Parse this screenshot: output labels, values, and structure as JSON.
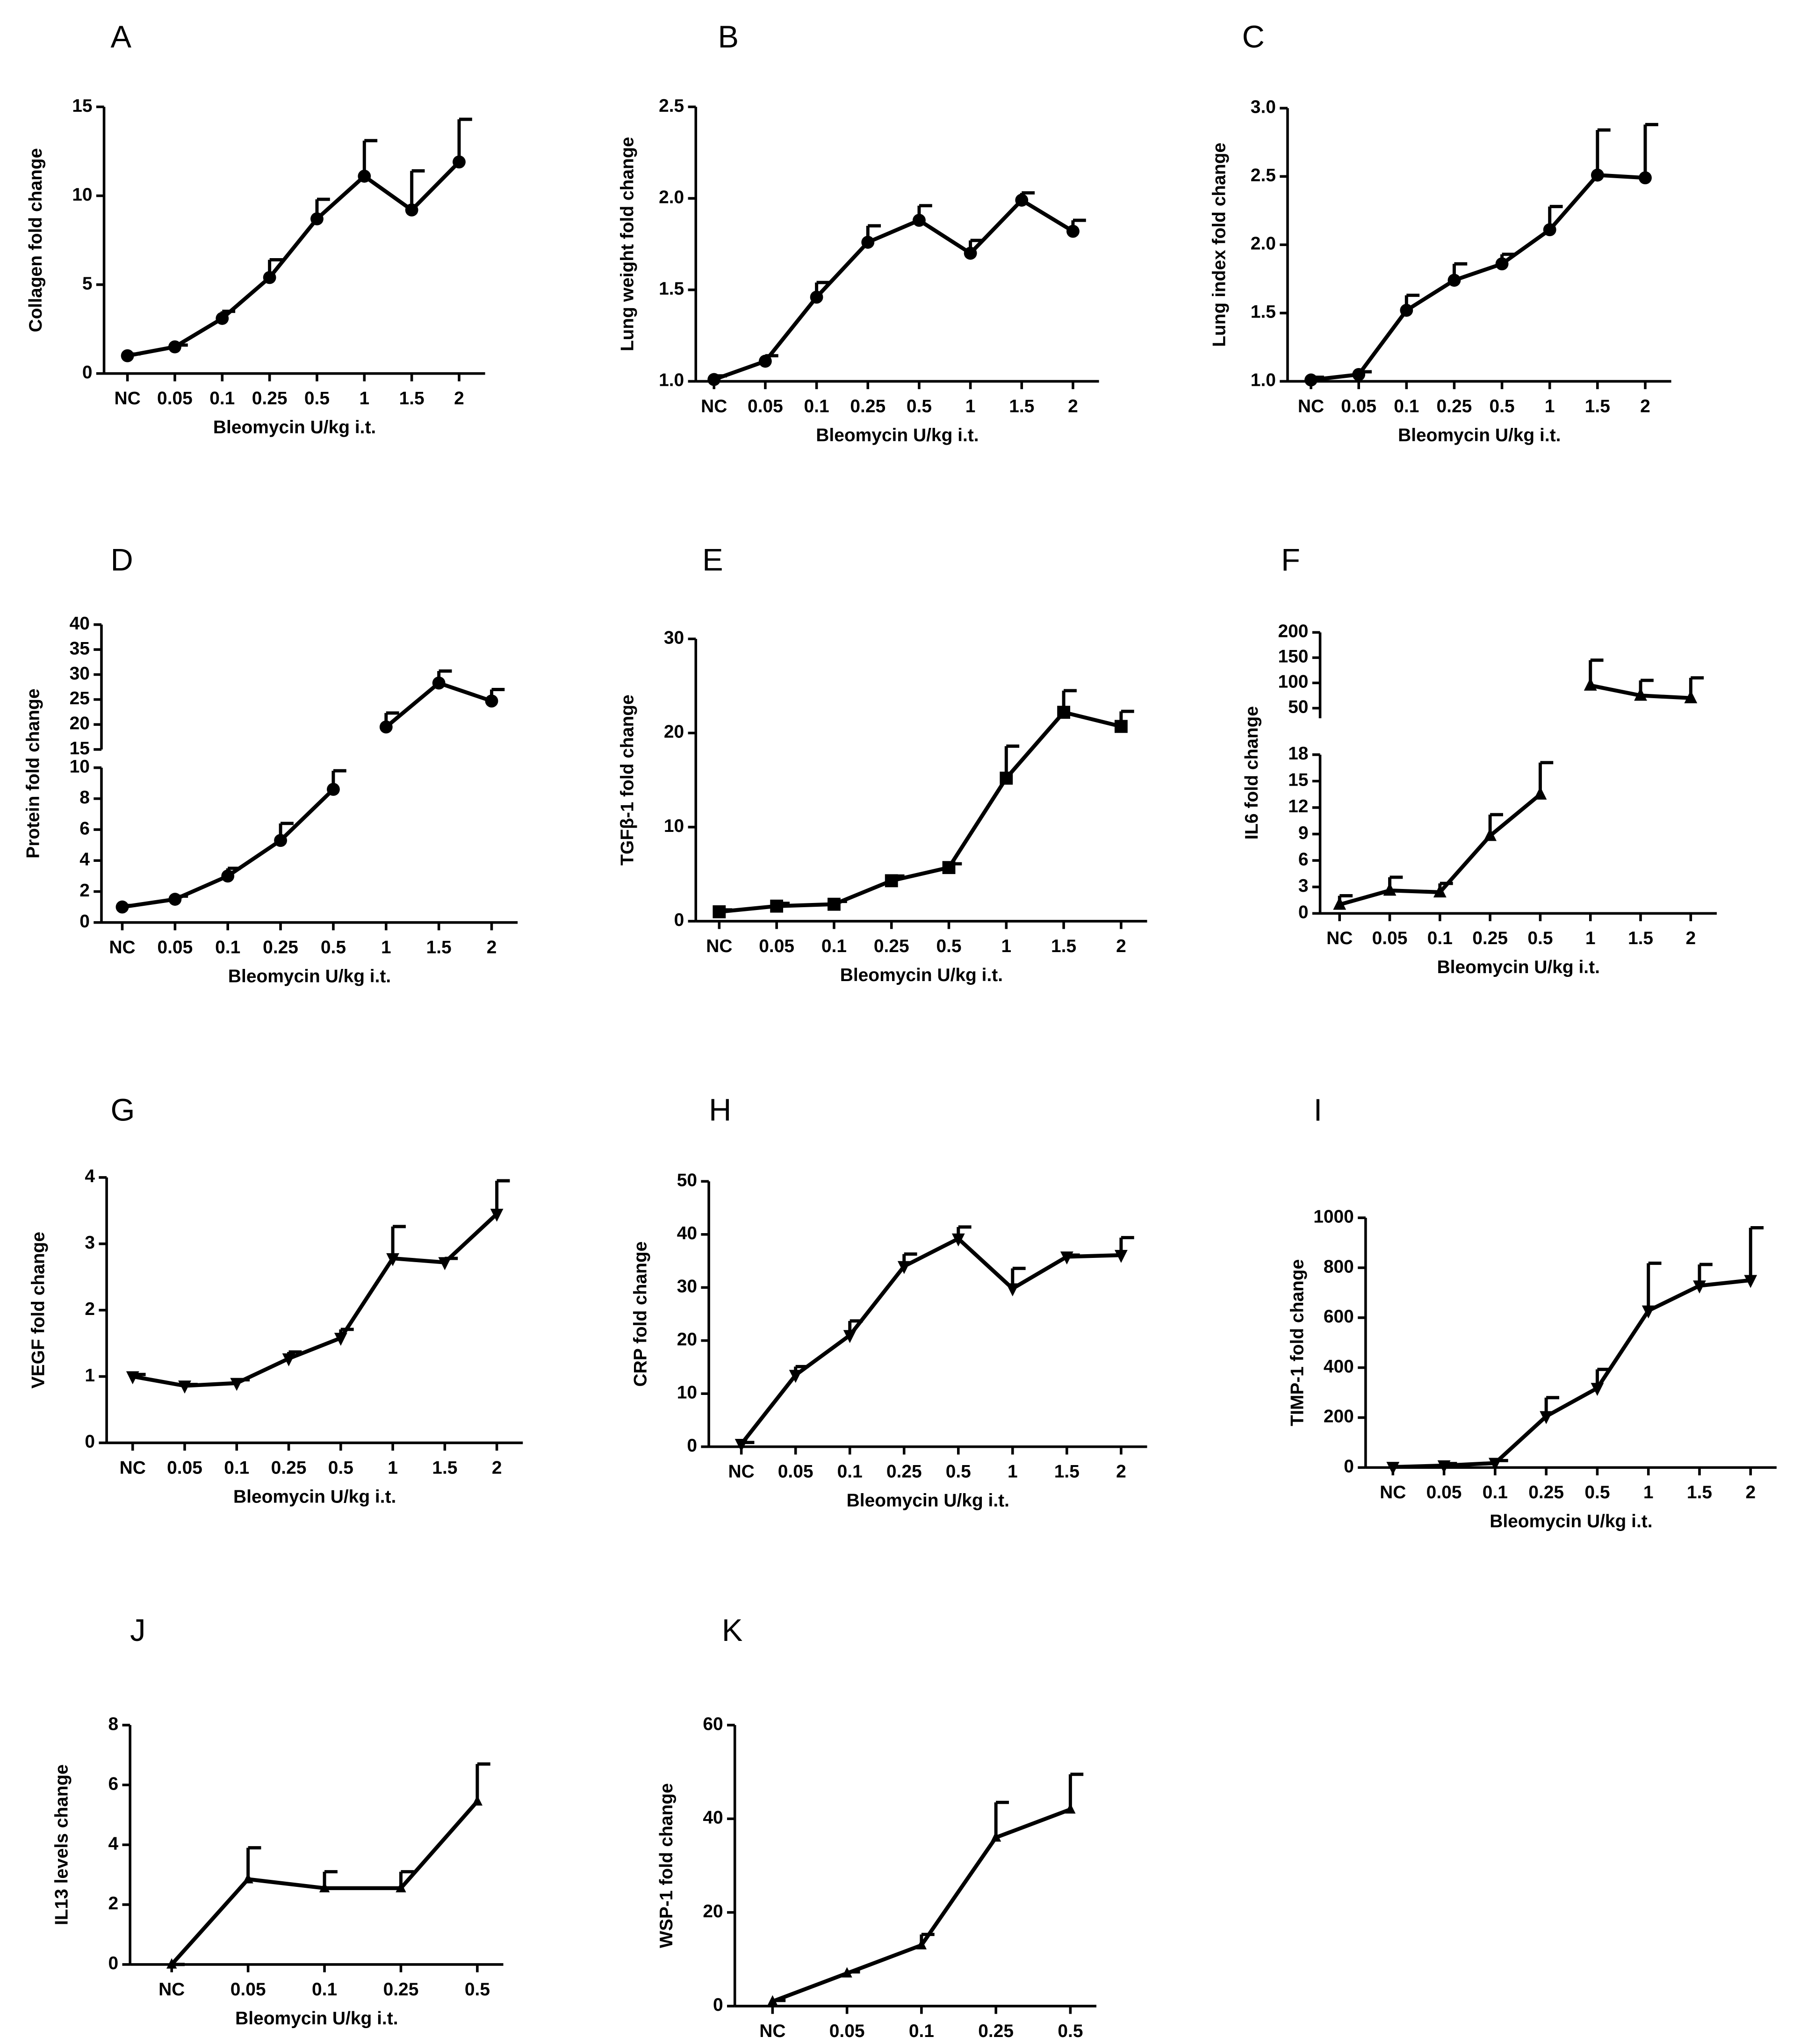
{
  "chart_data": [
    {
      "type": "line",
      "panel": "A",
      "ylabel": "Collagen fold change",
      "xlabel": "Bleomycin U/kg i.t.",
      "marker": "circle",
      "categories": [
        "NC",
        "0.05",
        "0.1",
        "0.25",
        "0.5",
        "1",
        "1.5",
        "2"
      ],
      "values": [
        1,
        1.5,
        3.1,
        5.4,
        8.7,
        11.1,
        9.2,
        11.9
      ],
      "errors": [
        0.1,
        0.1,
        0.4,
        1.0,
        1.1,
        2.0,
        2.2,
        2.4
      ],
      "ylim": [
        0,
        15
      ],
      "yticks": [
        0,
        5,
        10,
        15
      ]
    },
    {
      "type": "line",
      "panel": "B",
      "ylabel": "Lung weight fold change",
      "xlabel": "Bleomycin U/kg i.t.",
      "marker": "circle",
      "categories": [
        "NC",
        "0.05",
        "0.1",
        "0.25",
        "0.5",
        "1",
        "1.5",
        "2"
      ],
      "values": [
        1.01,
        1.11,
        1.46,
        1.76,
        1.88,
        1.7,
        1.99,
        1.82
      ],
      "errors": [
        0.02,
        0.03,
        0.08,
        0.09,
        0.08,
        0.07,
        0.04,
        0.06
      ],
      "ylim": [
        1,
        2.5
      ],
      "yticks": [
        {
          "value": 1,
          "label": "1.0"
        },
        1.5,
        {
          "value": 2,
          "label": "2.0"
        },
        2.5
      ]
    },
    {
      "type": "line",
      "panel": "C",
      "ylabel": "Lung index fold change",
      "xlabel": "Bleomycin U/kg i.t.",
      "marker": "circle",
      "categories": [
        "NC",
        "0.05",
        "0.1",
        "0.25",
        "0.5",
        "1",
        "1.5",
        "2"
      ],
      "values": [
        1.01,
        1.05,
        1.52,
        1.74,
        1.86,
        2.11,
        2.51,
        2.49
      ],
      "errors": [
        0.02,
        0.02,
        0.11,
        0.12,
        0.07,
        0.17,
        0.33,
        0.39
      ],
      "ylim": [
        1,
        3
      ],
      "yticks": [
        {
          "value": 1,
          "label": "1.0"
        },
        1.5,
        {
          "value": 2,
          "label": "2.0"
        },
        2.5,
        {
          "value": 3,
          "label": "3.0"
        }
      ]
    },
    {
      "type": "line",
      "panel": "D",
      "ylabel": "Protein fold change",
      "xlabel": "Bleomycin U/kg i.t.",
      "marker": "circle",
      "categories": [
        "NC",
        "0.05",
        "0.1",
        "0.25",
        "0.5",
        "1",
        "1.5",
        "2"
      ],
      "values": [
        1,
        1.5,
        3.0,
        5.3,
        8.6,
        19.5,
        28.3,
        24.7
      ],
      "errors": [
        0.1,
        0.2,
        0.5,
        1.1,
        1.2,
        2.8,
        2.4,
        2.3
      ],
      "y_segments": [
        {
          "ylim": [
            0,
            10
          ],
          "yticks": [
            0,
            2,
            4,
            6,
            8,
            10
          ]
        },
        {
          "ylim": [
            15,
            40
          ],
          "yticks": [
            15,
            20,
            25,
            30,
            35,
            40
          ]
        }
      ]
    },
    {
      "type": "line",
      "panel": "E",
      "ylabel": "TGFβ-1 fold change",
      "xlabel": "Bleomycin U/kg i.t.",
      "marker": "square",
      "categories": [
        "NC",
        "0.05",
        "0.1",
        "0.25",
        "0.5",
        "1",
        "1.5",
        "2"
      ],
      "values": [
        1,
        1.6,
        1.8,
        4.3,
        5.7,
        15.2,
        22.2,
        20.7
      ],
      "errors": [
        0.2,
        0.3,
        0.3,
        0.5,
        0.4,
        3.4,
        2.3,
        1.6
      ],
      "ylim": [
        0,
        30
      ],
      "yticks": [
        0,
        10,
        20,
        30
      ]
    },
    {
      "type": "line",
      "panel": "F",
      "ylabel": "IL6 fold change",
      "xlabel": "Bleomycin U/kg i.t.",
      "marker": "triangle-up",
      "categories": [
        "NC",
        "0.05",
        "0.1",
        "0.25",
        "0.5",
        "1",
        "1.5",
        "2"
      ],
      "values": [
        1,
        2.6,
        2.4,
        8.8,
        13.5,
        95,
        75,
        70
      ],
      "errors": [
        1,
        1.5,
        1.0,
        2.4,
        3.6,
        50,
        30,
        40
      ],
      "y_segments": [
        {
          "ylim": [
            0,
            18
          ],
          "yticks": [
            0,
            3,
            6,
            9,
            12,
            15,
            18
          ]
        },
        {
          "ylim": [
            30,
            200
          ],
          "yticks": [
            50,
            100,
            150,
            200
          ]
        }
      ]
    },
    {
      "type": "line",
      "panel": "G",
      "ylabel": "VEGF fold change",
      "xlabel": "Bleomycin U/kg i.t.",
      "marker": "triangle-down",
      "categories": [
        "NC",
        "0.05",
        "0.1",
        "0.25",
        "0.5",
        "1",
        "1.5",
        "2"
      ],
      "values": [
        1.0,
        0.86,
        0.9,
        1.27,
        1.58,
        2.78,
        2.72,
        3.45
      ],
      "errors": [
        0.03,
        0.02,
        0.05,
        0.1,
        0.13,
        0.48,
        0.06,
        0.5
      ],
      "ylim": [
        0,
        4
      ],
      "yticks": [
        0,
        1,
        2,
        3,
        4
      ]
    },
    {
      "type": "line",
      "panel": "H",
      "ylabel": "CRP fold change",
      "xlabel": "Bleomycin U/kg i.t.",
      "marker": "triangle-down",
      "categories": [
        "NC",
        "0.05",
        "0.1",
        "0.25",
        "0.5",
        "1",
        "1.5",
        "2"
      ],
      "values": [
        0.5,
        13.5,
        21,
        34,
        39.2,
        29.8,
        35.8,
        36.1
      ],
      "errors": [
        0.3,
        1.6,
        2.7,
        2.3,
        2.2,
        3.8,
        0.3,
        3.3
      ],
      "ylim": [
        0,
        50
      ],
      "yticks": [
        0,
        10,
        20,
        30,
        40,
        50
      ]
    },
    {
      "type": "line",
      "panel": "I",
      "ylabel": "TIMP-1 fold change",
      "xlabel": "Bleomycin U/kg i.t.",
      "marker": "triangle-down",
      "categories": [
        "NC",
        "0.05",
        "0.1",
        "0.25",
        "0.5",
        "1",
        "1.5",
        "2"
      ],
      "values": [
        2,
        8,
        18,
        205,
        318,
        628,
        728,
        750
      ],
      "errors": [
        2,
        8,
        10,
        75,
        75,
        190,
        85,
        210
      ],
      "ylim": [
        0,
        1000
      ],
      "yticks": [
        0,
        200,
        400,
        600,
        800,
        1000
      ]
    },
    {
      "type": "line",
      "panel": "J",
      "ylabel": "IL13 levels change",
      "xlabel": "Bleomycin U/kg i.t.",
      "marker": "triangle-up",
      "categories": [
        "NC",
        "0.05",
        "0.1",
        "0.25",
        "0.5"
      ],
      "values": [
        0,
        2.85,
        2.55,
        2.55,
        5.45
      ],
      "errors": [
        0,
        1.05,
        0.55,
        0.55,
        1.25
      ],
      "ylim": [
        0,
        8
      ],
      "yticks": [
        0,
        2,
        4,
        6,
        8
      ]
    },
    {
      "type": "line",
      "panel": "K",
      "ylabel": "WSP-1 fold change",
      "xlabel": "Bleomycin U/kg i.t.",
      "marker": "triangle-up",
      "categories": [
        "NC",
        "0.05",
        "0.1",
        "0.25",
        "0.5"
      ],
      "values": [
        1,
        7,
        13,
        36,
        42
      ],
      "errors": [
        0.2,
        0.3,
        2.3,
        7.5,
        7.5
      ],
      "ylim": [
        0,
        60
      ],
      "yticks": [
        0,
        20,
        40,
        60
      ]
    }
  ]
}
